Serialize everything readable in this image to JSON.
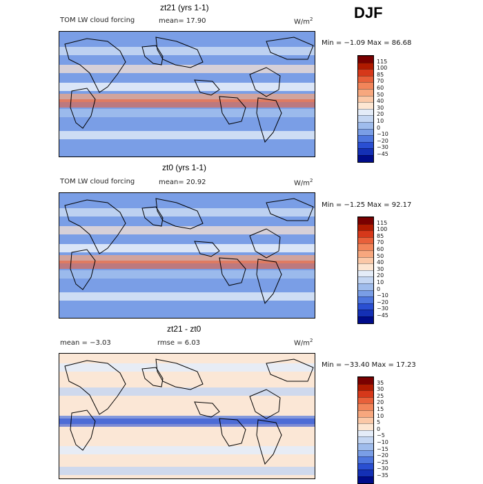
{
  "season": "DJF",
  "units": "W/m",
  "units_exp": "2",
  "panels": [
    {
      "title": "zt21 (yrs 1-1)",
      "label_left": "TOM LW cloud forcing",
      "label_mid": "mean=  17.90",
      "minmax": "Min =  −1.09  Max =  86.68",
      "colorbar": {
        "labels": [
          "115",
          "100",
          "85",
          "70",
          "60",
          "50",
          "40",
          "30",
          "20",
          "10",
          "0",
          "−10",
          "−20",
          "−30",
          "−45"
        ],
        "colors": [
          "#7a0000",
          "#b01a00",
          "#d6381a",
          "#e8603a",
          "#f2855a",
          "#f7a77e",
          "#fbc8a7",
          "#fde6d2",
          "#e4ecf8",
          "#c4d6f2",
          "#9fbcec",
          "#7a9ee6",
          "#4e76de",
          "#2a4fd2",
          "#1430b5",
          "#000c8a"
        ]
      }
    },
    {
      "title": "zt0 (yrs 1-1)",
      "label_left": "TOM LW cloud forcing",
      "label_mid": "mean=  20.92",
      "minmax": "Min =  −1.25  Max =  92.17",
      "colorbar": {
        "labels": [
          "115",
          "100",
          "85",
          "70",
          "60",
          "50",
          "40",
          "30",
          "20",
          "10",
          "0",
          "−10",
          "−20",
          "−30",
          "−45"
        ],
        "colors": [
          "#7a0000",
          "#b01a00",
          "#d6381a",
          "#e8603a",
          "#f2855a",
          "#f7a77e",
          "#fbc8a7",
          "#fde6d2",
          "#e4ecf8",
          "#c4d6f2",
          "#9fbcec",
          "#7a9ee6",
          "#4e76de",
          "#2a4fd2",
          "#1430b5",
          "#000c8a"
        ]
      }
    },
    {
      "title": "zt21 - zt0",
      "label_left": "mean =  −3.03",
      "label_mid": "rmse =   6.03",
      "minmax": "Min = −33.40  Max =   17.23",
      "colorbar": {
        "labels": [
          "35",
          "30",
          "25",
          "20",
          "15",
          "10",
          "5",
          "0",
          "−5",
          "−10",
          "−15",
          "−20",
          "−25",
          "−30",
          "−35"
        ],
        "colors": [
          "#7a0000",
          "#b01a00",
          "#d6381a",
          "#e8603a",
          "#f2855a",
          "#f7a77e",
          "#fbc8a7",
          "#fde6d2",
          "#e4ecf8",
          "#c4d6f2",
          "#9fbcec",
          "#7a9ee6",
          "#4e76de",
          "#2a4fd2",
          "#1430b5",
          "#000c8a"
        ]
      }
    }
  ],
  "chart_data": [
    {
      "type": "heatmap",
      "title": "zt21 (yrs 1-1)",
      "variable": "TOM LW cloud forcing",
      "units": "W/m2",
      "mean": 17.9,
      "min": -1.09,
      "max": 86.68,
      "levels": [
        -45,
        -30,
        -20,
        -10,
        0,
        10,
        20,
        30,
        40,
        50,
        60,
        70,
        85,
        100,
        115
      ]
    },
    {
      "type": "heatmap",
      "title": "zt0 (yrs 1-1)",
      "variable": "TOM LW cloud forcing",
      "units": "W/m2",
      "mean": 20.92,
      "min": -1.25,
      "max": 92.17,
      "levels": [
        -45,
        -30,
        -20,
        -10,
        0,
        10,
        20,
        30,
        40,
        50,
        60,
        70,
        85,
        100,
        115
      ]
    },
    {
      "type": "heatmap",
      "title": "zt21 - zt0",
      "units": "W/m2",
      "mean": -3.03,
      "rmse": 6.03,
      "min": -33.4,
      "max": 17.23,
      "levels": [
        -35,
        -30,
        -25,
        -20,
        -15,
        -10,
        -5,
        0,
        5,
        10,
        15,
        20,
        25,
        30,
        35
      ]
    }
  ]
}
